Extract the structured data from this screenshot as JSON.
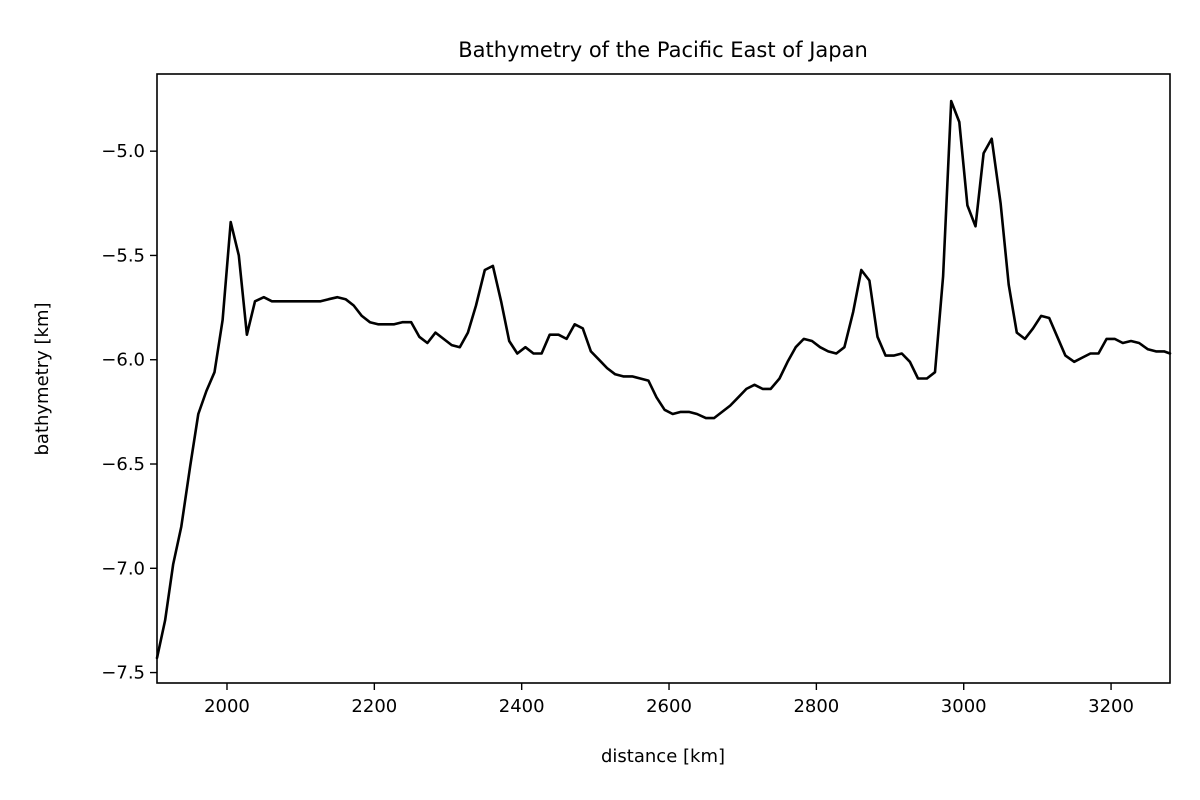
{
  "chart_data": {
    "type": "line",
    "title": "Bathymetry of the Pacific East of Japan",
    "xlabel": "distance [km]",
    "ylabel": "bathymetry [km]",
    "xlim": [
      1905,
      3280
    ],
    "ylim": [
      -7.55,
      -4.63
    ],
    "xticks": [
      2000,
      2200,
      2400,
      2600,
      2800,
      3000,
      3200
    ],
    "xtick_labels": [
      "2000",
      "2200",
      "2400",
      "2600",
      "2800",
      "3000",
      "3200"
    ],
    "yticks": [
      -5.0,
      -5.5,
      -6.0,
      -6.5,
      -7.0,
      -7.5
    ],
    "ytick_labels": [
      "−5.0",
      "−5.5",
      "−6.0",
      "−6.5",
      "−7.0",
      "−7.5"
    ],
    "grid": false,
    "series": [
      {
        "color": "#000000",
        "x": [
          1905,
          1916,
          1927,
          1938,
          1950,
          1961,
          1972,
          1983,
          1994,
          2005,
          2016,
          2027,
          2038,
          2050,
          2061,
          2072,
          2083,
          2094,
          2105,
          2116,
          2127,
          2138,
          2150,
          2161,
          2172,
          2183,
          2194,
          2205,
          2216,
          2227,
          2238,
          2250,
          2261,
          2272,
          2283,
          2294,
          2305,
          2316,
          2327,
          2338,
          2350,
          2361,
          2372,
          2383,
          2394,
          2405,
          2416,
          2427,
          2438,
          2450,
          2461,
          2472,
          2483,
          2494,
          2505,
          2516,
          2527,
          2538,
          2550,
          2561,
          2572,
          2583,
          2594,
          2605,
          2616,
          2627,
          2638,
          2650,
          2661,
          2672,
          2683,
          2694,
          2705,
          2716,
          2727,
          2738,
          2750,
          2761,
          2772,
          2783,
          2794,
          2805,
          2816,
          2827,
          2838,
          2850,
          2861,
          2872,
          2883,
          2894,
          2905,
          2916,
          2927,
          2938,
          2950,
          2961,
          2972,
          2983,
          2994,
          3005,
          3016,
          3027,
          3038,
          3050,
          3061,
          3072,
          3083,
          3094,
          3105,
          3116,
          3127,
          3138,
          3150,
          3161,
          3172,
          3183,
          3194,
          3205,
          3216,
          3227,
          3238,
          3250,
          3261,
          3272,
          3280
        ],
        "y": [
          -7.43,
          -7.25,
          -6.98,
          -6.8,
          -6.51,
          -6.26,
          -6.15,
          -6.06,
          -5.81,
          -5.34,
          -5.5,
          -5.88,
          -5.72,
          -5.7,
          -5.72,
          -5.72,
          -5.72,
          -5.72,
          -5.72,
          -5.72,
          -5.72,
          -5.71,
          -5.7,
          -5.71,
          -5.74,
          -5.79,
          -5.82,
          -5.83,
          -5.83,
          -5.83,
          -5.82,
          -5.82,
          -5.89,
          -5.92,
          -5.87,
          -5.9,
          -5.93,
          -5.94,
          -5.87,
          -5.74,
          -5.57,
          -5.55,
          -5.72,
          -5.91,
          -5.97,
          -5.94,
          -5.97,
          -5.97,
          -5.88,
          -5.88,
          -5.9,
          -5.83,
          -5.85,
          -5.96,
          -6.0,
          -6.04,
          -6.07,
          -6.08,
          -6.08,
          -6.09,
          -6.1,
          -6.18,
          -6.24,
          -6.26,
          -6.25,
          -6.25,
          -6.26,
          -6.28,
          -6.28,
          -6.25,
          -6.22,
          -6.18,
          -6.14,
          -6.12,
          -6.14,
          -6.14,
          -6.09,
          -6.01,
          -5.94,
          -5.9,
          -5.91,
          -5.94,
          -5.96,
          -5.97,
          -5.94,
          -5.77,
          -5.57,
          -5.62,
          -5.89,
          -5.98,
          -5.98,
          -5.97,
          -6.01,
          -6.09,
          -6.09,
          -6.06,
          -5.6,
          -4.76,
          -4.86,
          -5.26,
          -5.36,
          -5.01,
          -4.94,
          -5.25,
          -5.64,
          -5.87,
          -5.9,
          -5.85,
          -5.79,
          -5.8,
          -5.89,
          -5.98,
          -6.01,
          -5.99,
          -5.97,
          -5.97,
          -5.9,
          -5.9,
          -5.92,
          -5.91,
          -5.92,
          -5.95,
          -5.96,
          -5.96,
          -5.97
        ]
      }
    ]
  }
}
